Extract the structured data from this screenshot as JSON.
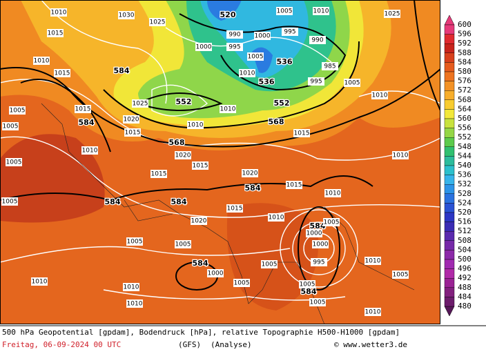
{
  "map": {
    "contour_labels": [
      "1030",
      "520",
      "1010",
      "1005",
      "1010",
      "1025",
      "1025",
      "990",
      "1000",
      "995",
      "990",
      "1000",
      "995",
      "1015",
      "1010",
      "1015",
      "584",
      "1005",
      "536",
      "985",
      "1010",
      "536",
      "995",
      "1005",
      "1010",
      "1005",
      "1015",
      "1025",
      "552",
      "552",
      "1010",
      "584",
      "1020",
      "1010",
      "568",
      "1005",
      "1015",
      "568",
      "1015",
      "1010",
      "1005",
      "1020",
      "1020",
      "1010",
      "1015",
      "1015",
      "584",
      "1015",
      "1010",
      "584",
      "584",
      "1005",
      "1015",
      "1010",
      "1020",
      "584",
      "1005",
      "1000",
      "1005",
      "1005",
      "1000",
      "584",
      "1000",
      "1005",
      "995",
      "1010",
      "1005",
      "1010",
      "1010",
      "1005",
      "1005",
      "584",
      "1010",
      "1005",
      "1010"
    ]
  },
  "colorbar": {
    "labels": [
      600,
      596,
      592,
      588,
      584,
      580,
      576,
      572,
      568,
      564,
      560,
      556,
      552,
      548,
      544,
      540,
      536,
      532,
      528,
      524,
      520,
      516,
      512,
      508,
      504,
      500,
      496,
      492,
      488,
      484,
      480
    ]
  },
  "footer": {
    "description": "500 hPa Geopotential [gpdam], Bodendruck [hPa], relative Topographie H500-H1000 [gpdam]",
    "date": "Freitag, 06-09-2024  00 UTC",
    "model": "(GFS)",
    "analysis": "(Analyse)",
    "copyright": "© www.wetter3.de"
  }
}
